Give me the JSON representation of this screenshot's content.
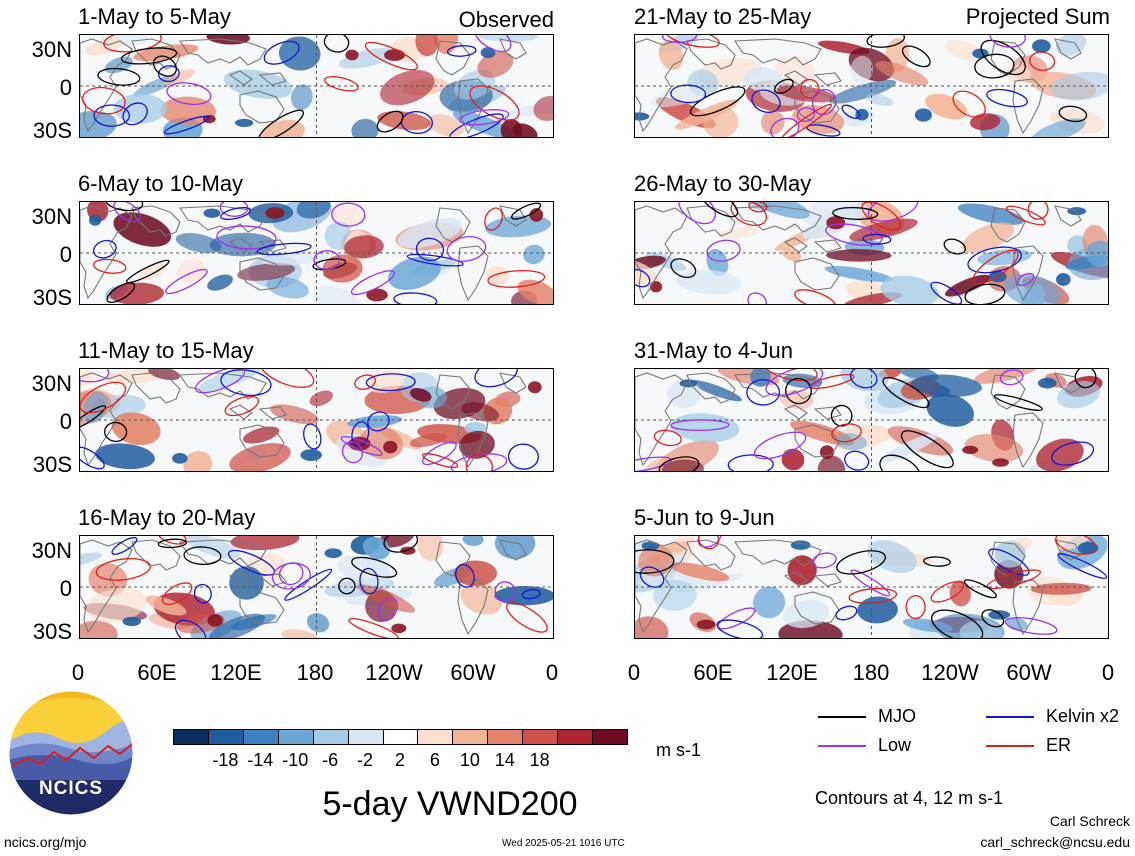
{
  "left_panels": [
    {
      "title": "1-May to 5-May"
    },
    {
      "title": "6-May to 10-May"
    },
    {
      "title": "11-May to 15-May"
    },
    {
      "title": "16-May to 20-May"
    }
  ],
  "right_panels": [
    {
      "title": "21-May to 25-May"
    },
    {
      "title": "26-May to 30-May"
    },
    {
      "title": "31-May to 4-Jun"
    },
    {
      "title": "5-Jun to 9-Jun"
    }
  ],
  "observed_label": "Observed",
  "projected_label": "Projected Sum",
  "lat_labels": [
    "30N",
    "0",
    "30S"
  ],
  "lon_labels": [
    "0",
    "60E",
    "120E",
    "180",
    "120W",
    "60W",
    "0"
  ],
  "colorbar": {
    "colors": [
      "#0b2d5c",
      "#1f5d9f",
      "#3d83c2",
      "#6aa6d6",
      "#a6cbe6",
      "#d9e7f4",
      "#ffffff",
      "#fbe0cf",
      "#f3b495",
      "#e4826a",
      "#cf5348",
      "#ad2331",
      "#6e0b22"
    ],
    "labels": [
      "-18",
      "-14",
      "-10",
      "-6",
      "-2",
      "2",
      "6",
      "10",
      "14",
      "18"
    ],
    "units": "m s-1"
  },
  "legend": {
    "items": [
      {
        "name": "MJO",
        "color": "#000000"
      },
      {
        "name": "Kelvin x2",
        "color": "#1414d2"
      },
      {
        "name": "Low",
        "color": "#9b30f0"
      },
      {
        "name": "ER",
        "color": "#e0201f"
      }
    ],
    "contours": "Contours at 4, 12 m s-1"
  },
  "main_title": "5-day VWND200",
  "logo_text": "NCICS",
  "footer": {
    "site": "ncics.org/mjo",
    "timestamp": "Wed 2025-05-21 1016 UTC",
    "author": "Carl Schreck",
    "email": "carl_schreck@ncsu.edu"
  }
}
